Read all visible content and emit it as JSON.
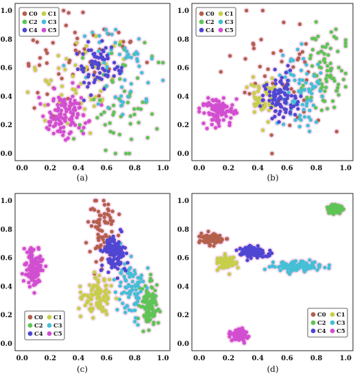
{
  "colors": {
    "C0": "#b3604c",
    "C1": "#c5cf49",
    "C2": "#5fc456",
    "C3": "#45bfd6",
    "C4": "#4f47d3",
    "C5": "#d14ed1",
    "halo": "#f3c9e6"
  },
  "legend_labels": [
    "C0",
    "C1",
    "C2",
    "C3",
    "C4",
    "C5"
  ],
  "panel_labels": [
    "(a)",
    "(b)",
    "(c)",
    "(d)"
  ],
  "chart_data": [
    {
      "type": "scatter",
      "panel": "(a)",
      "xlim": [
        -0.05,
        1.05
      ],
      "ylim": [
        -0.05,
        1.05
      ],
      "xticks": [
        "0.0",
        "0.2",
        "0.4",
        "0.6",
        "0.8",
        "1.0"
      ],
      "yticks": [
        "0.0",
        "0.2",
        "0.4",
        "0.6",
        "0.8",
        "1.0"
      ],
      "legend_position": "top-left",
      "clusters": [
        {
          "name": "C0",
          "n": 55,
          "cx": 0.4,
          "cy": 0.65,
          "sx": 0.22,
          "sy": 0.2
        },
        {
          "name": "C1",
          "n": 55,
          "cx": 0.42,
          "cy": 0.5,
          "sx": 0.15,
          "sy": 0.18
        },
        {
          "name": "C2",
          "n": 60,
          "cx": 0.72,
          "cy": 0.35,
          "sx": 0.16,
          "sy": 0.22
        },
        {
          "name": "C3",
          "n": 55,
          "cx": 0.68,
          "cy": 0.62,
          "sx": 0.12,
          "sy": 0.15
        },
        {
          "name": "C4",
          "n": 70,
          "cx": 0.54,
          "cy": 0.62,
          "sx": 0.08,
          "sy": 0.1
        },
        {
          "name": "C5",
          "n": 110,
          "cx": 0.32,
          "cy": 0.27,
          "sx": 0.08,
          "sy": 0.08
        }
      ]
    },
    {
      "type": "scatter",
      "panel": "(b)",
      "xlim": [
        -0.05,
        1.05
      ],
      "ylim": [
        -0.05,
        1.05
      ],
      "xticks": [
        "0.0",
        "0.2",
        "0.4",
        "0.6",
        "0.8",
        "1.0"
      ],
      "yticks": [
        "0.0",
        "0.2",
        "0.4",
        "0.6",
        "0.8",
        "1.0"
      ],
      "legend_position": "top-left",
      "clusters": [
        {
          "name": "C0",
          "n": 45,
          "cx": 0.55,
          "cy": 0.55,
          "sx": 0.18,
          "sy": 0.22
        },
        {
          "name": "C1",
          "n": 55,
          "cx": 0.44,
          "cy": 0.38,
          "sx": 0.05,
          "sy": 0.07
        },
        {
          "name": "C2",
          "n": 80,
          "cx": 0.86,
          "cy": 0.6,
          "sx": 0.07,
          "sy": 0.15
        },
        {
          "name": "C3",
          "n": 80,
          "cx": 0.7,
          "cy": 0.4,
          "sx": 0.07,
          "sy": 0.12
        },
        {
          "name": "C4",
          "n": 90,
          "cx": 0.55,
          "cy": 0.38,
          "sx": 0.06,
          "sy": 0.08
        },
        {
          "name": "C5",
          "n": 110,
          "cx": 0.13,
          "cy": 0.3,
          "sx": 0.05,
          "sy": 0.05
        }
      ]
    },
    {
      "type": "scatter",
      "panel": "(c)",
      "xlim": [
        -0.05,
        1.05
      ],
      "ylim": [
        -0.05,
        1.05
      ],
      "xticks": [
        "0.0",
        "0.2",
        "0.4",
        "0.6",
        "0.8",
        "1.0"
      ],
      "yticks": [
        "0.0",
        "0.2",
        "0.4",
        "0.6",
        "0.8",
        "1.0"
      ],
      "legend_position": "bottom-left",
      "clusters": [
        {
          "name": "C0",
          "n": 80,
          "cx": 0.56,
          "cy": 0.78,
          "sx": 0.05,
          "sy": 0.13
        },
        {
          "name": "C1",
          "n": 90,
          "cx": 0.54,
          "cy": 0.33,
          "sx": 0.05,
          "sy": 0.08
        },
        {
          "name": "C2",
          "n": 100,
          "cx": 0.91,
          "cy": 0.28,
          "sx": 0.03,
          "sy": 0.08
        },
        {
          "name": "C3",
          "n": 80,
          "cx": 0.77,
          "cy": 0.38,
          "sx": 0.05,
          "sy": 0.12
        },
        {
          "name": "C4",
          "n": 120,
          "cx": 0.66,
          "cy": 0.63,
          "sx": 0.04,
          "sy": 0.06
        },
        {
          "name": "C5",
          "n": 110,
          "cx": 0.08,
          "cy": 0.52,
          "sx": 0.03,
          "sy": 0.07
        }
      ]
    },
    {
      "type": "scatter",
      "panel": "(d)",
      "xlim": [
        -0.05,
        1.05
      ],
      "ylim": [
        -0.05,
        1.05
      ],
      "xticks": [
        "0.0",
        "0.2",
        "0.4",
        "0.6",
        "0.8",
        "1.0"
      ],
      "yticks": [
        "0.0",
        "0.2",
        "0.4",
        "0.6",
        "0.8",
        "1.0"
      ],
      "legend_position": "bottom-right",
      "clusters": [
        {
          "name": "C0",
          "n": 90,
          "cx": 0.09,
          "cy": 0.73,
          "sx": 0.04,
          "sy": 0.02
        },
        {
          "name": "C1",
          "n": 80,
          "cx": 0.19,
          "cy": 0.56,
          "sx": 0.03,
          "sy": 0.025
        },
        {
          "name": "C2",
          "n": 100,
          "cx": 0.92,
          "cy": 0.94,
          "sx": 0.025,
          "sy": 0.015
        },
        {
          "name": "C3",
          "n": 110,
          "cx": 0.68,
          "cy": 0.54,
          "sx": 0.08,
          "sy": 0.02
        },
        {
          "name": "C4",
          "n": 110,
          "cx": 0.37,
          "cy": 0.64,
          "sx": 0.05,
          "sy": 0.018
        },
        {
          "name": "C5",
          "n": 110,
          "cx": 0.27,
          "cy": 0.06,
          "sx": 0.03,
          "sy": 0.02
        }
      ]
    }
  ]
}
